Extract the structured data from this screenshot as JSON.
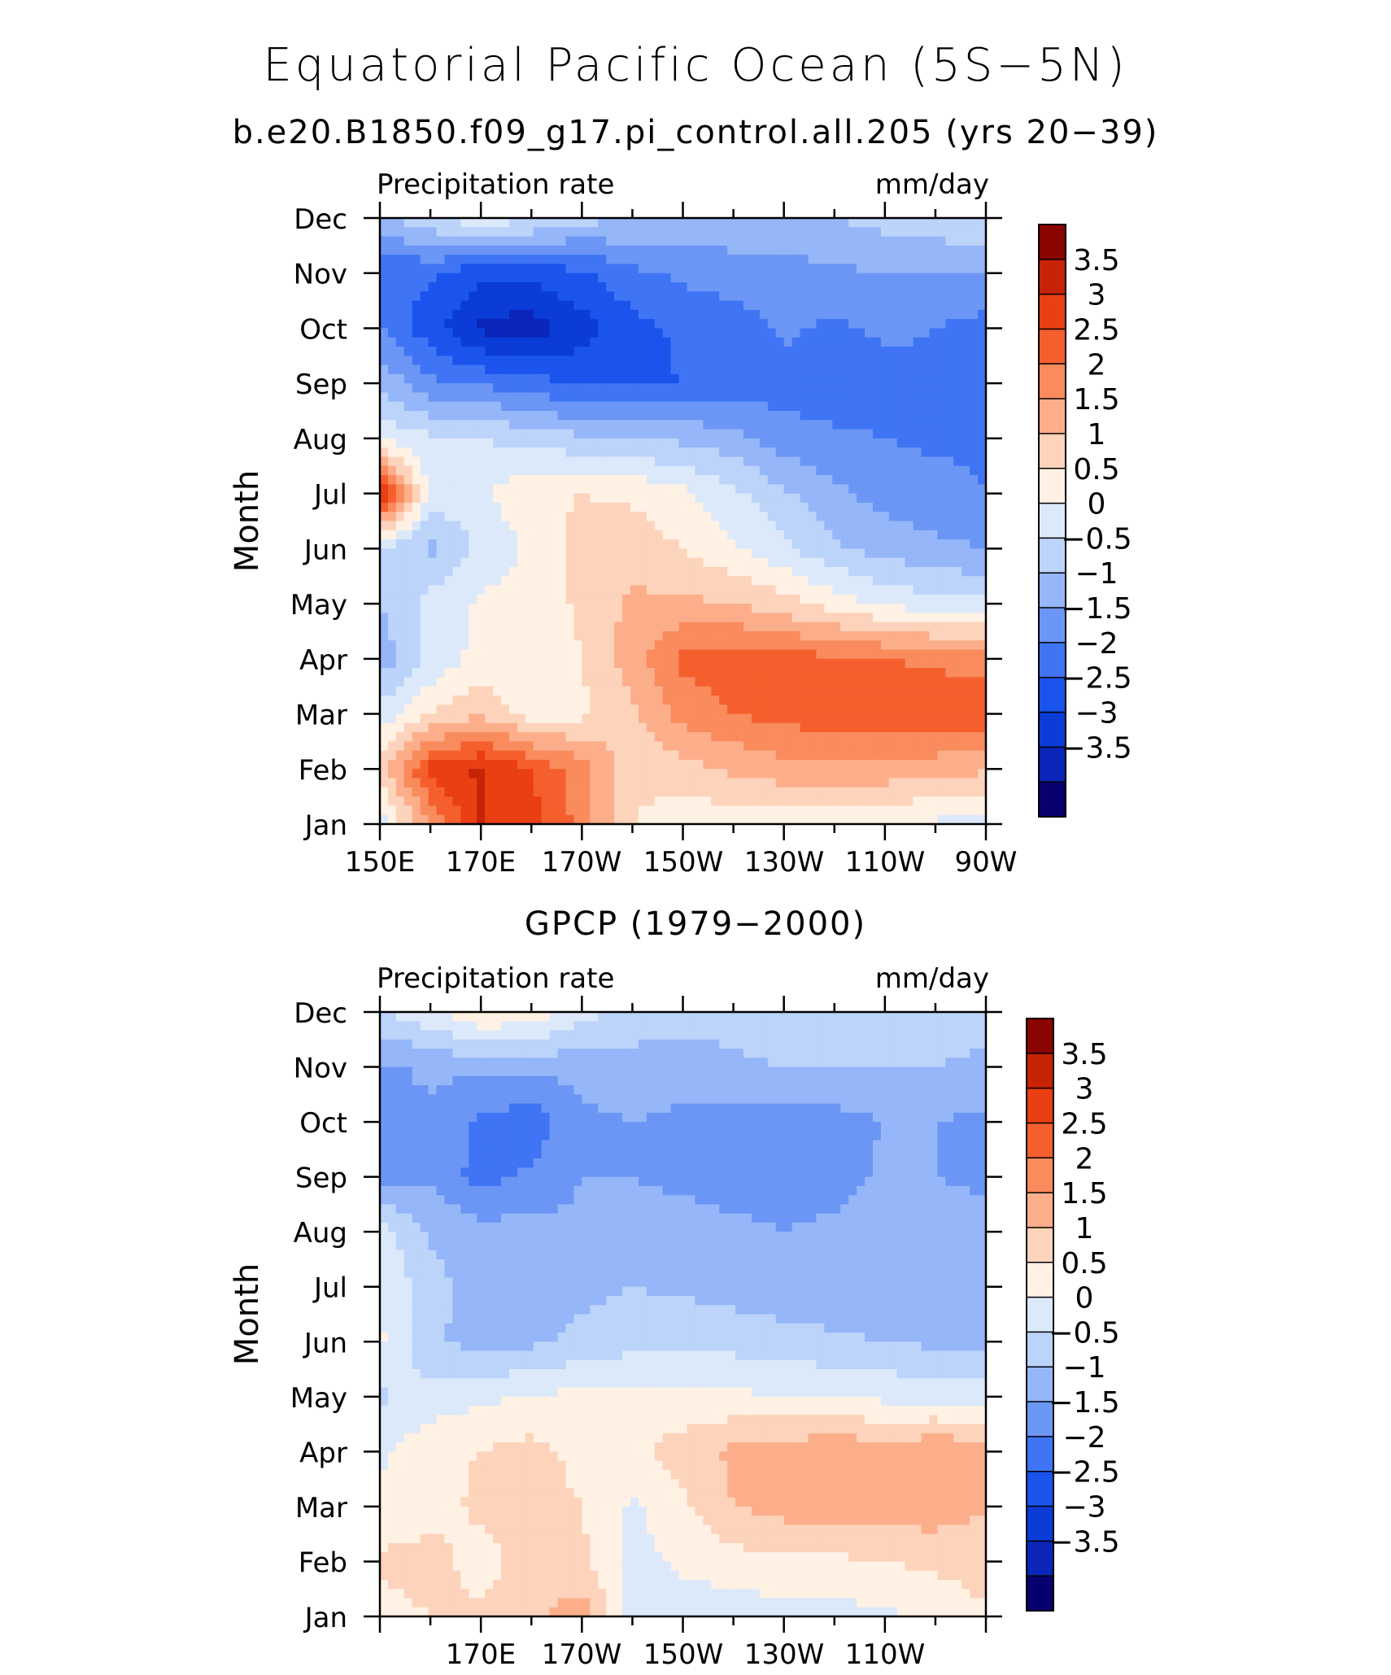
{
  "title": "Equatorial Pacific Ocean (5S−5N)",
  "colors": {
    "levels": [
      "#08006e",
      "#0a25b8",
      "#0b3cd8",
      "#1a54ec",
      "#3f75f5",
      "#6c96f5",
      "#95b6f8",
      "#bcd3fa",
      "#dce9fb",
      "#fff1e3",
      "#fdd3bb",
      "#fcae8b",
      "#f98b5d",
      "#f55f2e",
      "#e93f13",
      "#c62307",
      "#8a0400"
    ]
  },
  "chart_data": [
    {
      "type": "heatmap",
      "subtitle": "b.e20.B1850.f09_g17.pi_control.all.205 (yrs 20−39)",
      "left_label": "Precipitation rate",
      "right_label": "mm/day",
      "ylabel": "Month",
      "xlabel": "",
      "x_tick_labels": [
        "150E",
        "170E",
        "170W",
        "150W",
        "130W",
        "110W",
        "90W"
      ],
      "y_tick_labels": [
        "Jan",
        "Feb",
        "Mar",
        "Apr",
        "May",
        "Jun",
        "Jul",
        "Aug",
        "Sep",
        "Oct",
        "Nov",
        "Dec"
      ],
      "colorbar_labels": [
        "3.5",
        "3",
        "2.5",
        "2",
        "1.5",
        "1",
        "0.5",
        "0",
        "−0.5",
        "−1",
        "−1.5",
        "−2",
        "−2.5",
        "−3",
        "−3.5"
      ],
      "levels": [
        -3.5,
        -3,
        -2.5,
        -2,
        -1.5,
        -1,
        -0.5,
        0,
        0.5,
        1,
        1.5,
        2,
        2.5,
        3,
        3.5
      ],
      "x_lon": [
        150,
        160,
        170,
        180,
        190,
        200,
        210,
        220,
        230,
        240,
        250,
        260,
        270
      ],
      "grid": [
        [
          0.2,
          2.0,
          3.5,
          3.2,
          2.3,
          1.0,
          0.6,
          0.7,
          0.7,
          0.7,
          0.6,
          0.4,
          0.3
        ],
        [
          1.2,
          3.2,
          3.6,
          3.0,
          2.2,
          1.2,
          1.3,
          1.6,
          1.8,
          1.8,
          1.8,
          1.7,
          1.6
        ],
        [
          0.2,
          1.0,
          1.4,
          0.7,
          0.9,
          1.4,
          2.2,
          2.5,
          2.7,
          2.8,
          2.9,
          2.9,
          2.8
        ],
        [
          -0.8,
          0.1,
          0.7,
          0.5,
          1.0,
          1.8,
          2.6,
          2.8,
          2.7,
          2.6,
          2.5,
          2.4,
          2.3
        ],
        [
          -0.5,
          0.2,
          0.6,
          0.7,
          1.1,
          1.6,
          1.6,
          1.5,
          1.2,
          0.8,
          0.4,
          0.2,
          0.1
        ],
        [
          -0.1,
          -0.6,
          0.1,
          0.6,
          1.2,
          1.3,
          1.0,
          0.6,
          0.1,
          -0.4,
          -0.7,
          -0.9,
          -1.0
        ],
        [
          3.8,
          0.2,
          0.4,
          0.9,
          1.0,
          0.9,
          0.6,
          0.1,
          -0.4,
          -0.9,
          -1.2,
          -1.3,
          -1.5
        ],
        [
          0.4,
          0.1,
          0.0,
          -0.2,
          -0.4,
          -0.5,
          -0.6,
          -0.8,
          -1.3,
          -1.4,
          -1.5,
          -1.6,
          -1.6
        ],
        [
          -0.6,
          -1.4,
          -1.6,
          -1.8,
          -2.1,
          -2.1,
          -2.0,
          -1.9,
          -1.7,
          -1.8,
          -1.7,
          -1.6,
          -1.6
        ],
        [
          -1.5,
          -2.3,
          -3.1,
          -3.3,
          -2.7,
          -2.2,
          -1.9,
          -1.8,
          -1.4,
          -1.6,
          -1.4,
          -1.5,
          -1.7
        ],
        [
          -2.0,
          -1.9,
          -2.4,
          -2.3,
          -2.1,
          -1.6,
          -1.4,
          -1.2,
          -1.2,
          -1.1,
          -1.0,
          -1.0,
          -1.0
        ],
        [
          -0.6,
          -0.1,
          0.4,
          0.1,
          -0.3,
          -0.5,
          -0.6,
          -0.7,
          -0.6,
          -0.5,
          -0.3,
          -0.2,
          0.1
        ]
      ]
    },
    {
      "type": "heatmap",
      "subtitle": "GPCP (1979−2000)",
      "left_label": "Precipitation rate",
      "right_label": "mm/day",
      "ylabel": "Month",
      "xlabel": "",
      "x_tick_labels": [
        "170E",
        "170W",
        "150W",
        "130W",
        "110W"
      ],
      "y_tick_labels": [
        "Jan",
        "Feb",
        "Mar",
        "Apr",
        "May",
        "Jun",
        "Jul",
        "Aug",
        "Sep",
        "Oct",
        "Nov",
        "Dec"
      ],
      "colorbar_labels": [
        "3.5",
        "3",
        "2.5",
        "2",
        "1.5",
        "1",
        "0.5",
        "0",
        "−0.5",
        "−1",
        "−1.5",
        "−2",
        "−2.5",
        "−3",
        "−3.5"
      ],
      "levels": [
        -3.5,
        -3,
        -2.5,
        -2,
        -1.5,
        -1,
        -0.5,
        0,
        0.5,
        1,
        1.5,
        2,
        2.5,
        3,
        3.5
      ],
      "x_lon": [
        150,
        160,
        170,
        180,
        190,
        200,
        210,
        220,
        230,
        240,
        250,
        260,
        270
      ],
      "grid": [
        [
          0.8,
          1.0,
          1.1,
          1.4,
          1.8,
          0.2,
          0.2,
          0.2,
          0.3,
          0.3,
          0.4,
          0.6,
          0.9
        ],
        [
          1.1,
          1.2,
          0.8,
          1.2,
          1.1,
          0.3,
          0.6,
          0.8,
          0.9,
          0.9,
          1.0,
          1.1,
          1.3
        ],
        [
          0.6,
          0.8,
          1.1,
          1.3,
          1.0,
          0.4,
          0.9,
          1.5,
          1.7,
          1.8,
          1.8,
          1.8,
          1.5
        ],
        [
          0.4,
          0.9,
          1.0,
          1.2,
          0.8,
          0.9,
          1.2,
          1.6,
          1.7,
          2.0,
          1.6,
          2.0,
          1.7
        ],
        [
          -0.1,
          0.2,
          0.4,
          0.5,
          0.7,
          0.7,
          0.7,
          0.6,
          0.5,
          0.5,
          0.4,
          0.3,
          0.2
        ],
        [
          0.6,
          -0.4,
          -0.7,
          -0.6,
          -0.4,
          -0.2,
          -0.1,
          -0.2,
          -0.3,
          -0.4,
          -0.5,
          -0.6,
          -0.6
        ],
        [
          0.5,
          -0.3,
          -0.8,
          -0.8,
          -0.6,
          -0.5,
          -0.6,
          -0.7,
          -0.8,
          -0.9,
          -0.9,
          -0.8,
          -0.9
        ],
        [
          0.2,
          -0.6,
          -0.8,
          -0.8,
          -0.9,
          -0.8,
          -0.8,
          -0.9,
          -1.0,
          -0.9,
          -0.8,
          -0.8,
          -0.8
        ],
        [
          -1.2,
          -1.1,
          -1.7,
          -1.4,
          -1.0,
          -1.0,
          -1.1,
          -1.2,
          -1.2,
          -1.2,
          -0.9,
          -1.0,
          -1.1
        ],
        [
          -1.2,
          -1.1,
          -1.6,
          -1.8,
          -1.1,
          -1.0,
          -1.1,
          -1.2,
          -1.3,
          -1.2,
          -1.0,
          -1.0,
          -1.1
        ],
        [
          -1.1,
          -0.9,
          -0.9,
          -0.9,
          -0.8,
          -0.7,
          -0.8,
          -0.6,
          -0.5,
          -0.5,
          -0.5,
          -0.5,
          -0.6
        ],
        [
          -0.1,
          0.4,
          1.0,
          0.9,
          0.2,
          -0.2,
          -0.2,
          -0.3,
          -0.2,
          -0.3,
          -0.3,
          -0.3,
          -0.3
        ]
      ]
    }
  ]
}
